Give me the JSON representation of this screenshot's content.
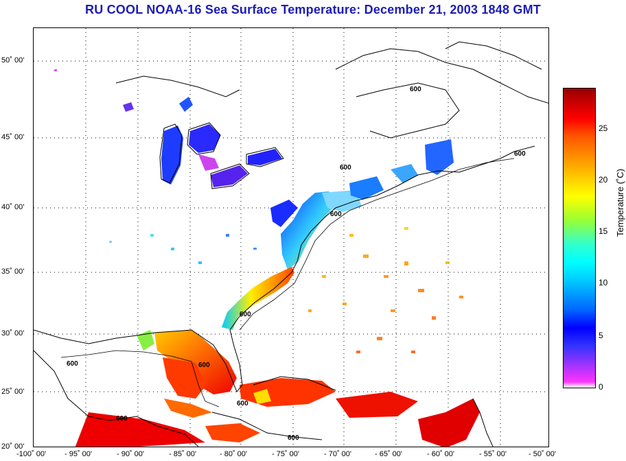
{
  "title": "RU COOL  NOAA-16  Sea Surface Temperature:  December 21, 2003 1848 GMT",
  "lat_labels": [
    "50˚ 00'",
    "45˚ 00'",
    "40˚ 00'",
    "35˚ 00'",
    "30˚ 00'",
    "25˚ 00'",
    "20˚ 00'"
  ],
  "lon_labels": [
    "-100˚ 00'",
    "- 95˚ 00'",
    "- 90˚ 00'",
    "- 85˚ 00'",
    "- 80˚ 00'",
    "- 75˚ 00'",
    "- 70˚ 00'",
    "- 65˚ 00'",
    "- 60˚ 00'",
    "- 55˚ 00'",
    "- 50˚ 00'"
  ],
  "contour_label": "600",
  "colorbar": {
    "label": "Temperature (˚C)",
    "ticks": [
      "25",
      "20",
      "15",
      "10",
      "5",
      "0"
    ]
  },
  "colors": {
    "title": "#1c1cb8"
  }
}
